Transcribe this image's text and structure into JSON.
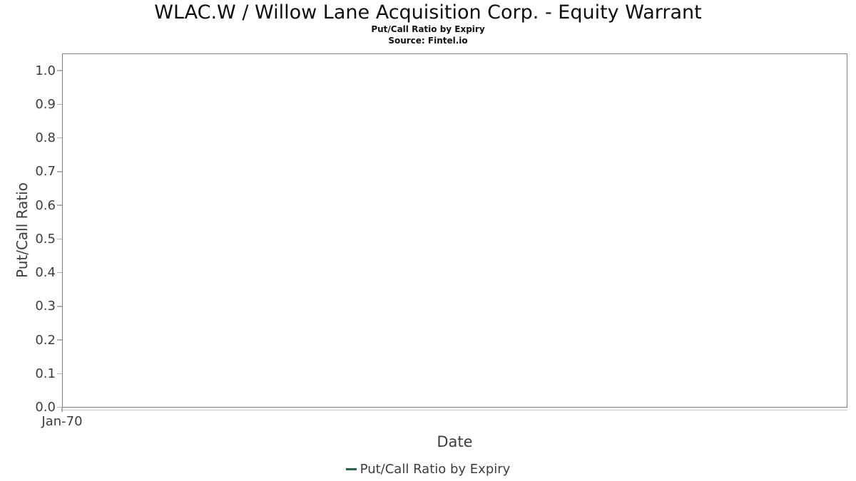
{
  "chart_data": {
    "type": "line",
    "title": "WLAC.W / Willow Lane Acquisition Corp. - Equity Warrant",
    "subtitle": "Put/Call Ratio by Expiry",
    "source": "Source: Fintel.io",
    "xlabel": "Date",
    "ylabel": "Put/Call Ratio",
    "x_tick_labels": [
      "Jan-70"
    ],
    "y_ticks": [
      0.0,
      0.1,
      0.2,
      0.3,
      0.4,
      0.5,
      0.6,
      0.7,
      0.8,
      0.9,
      1.0
    ],
    "ylim": [
      0.0,
      1.05
    ],
    "grid": "horizontal",
    "legend": {
      "position": "bottom-center",
      "entries": [
        {
          "label": "Put/Call Ratio by Expiry",
          "marker": "line-icon",
          "marker_color": "#2d6345"
        }
      ]
    },
    "series": [
      {
        "name": "Put/Call Ratio by Expiry",
        "color": "#2d6345",
        "x": [],
        "y": []
      }
    ],
    "colors": {
      "spine": "#7f7f7f",
      "gridline": "#e8e8e8",
      "tick": "#b0b0b0",
      "axis_text": "#3d3d3d",
      "title_text": "#0f0f0f"
    }
  }
}
